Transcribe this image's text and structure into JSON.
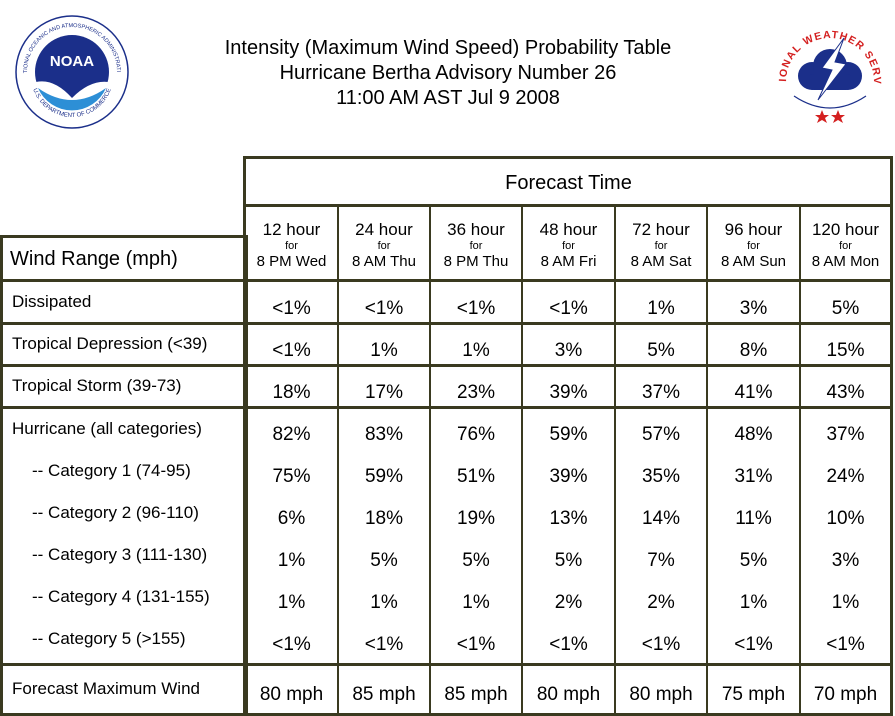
{
  "title": {
    "line1": "Intensity (Maximum Wind Speed) Probability Table",
    "line2": "Hurricane Bertha Advisory Number 26",
    "line3": "11:00 AM AST Jul 9 2008"
  },
  "logos": {
    "noaa": {
      "text": "NOAA",
      "ring_top": "NATIONAL OCEANIC AND ATMOSPHERIC ADMINISTRATION",
      "ring_bottom": "U.S. DEPARTMENT OF COMMERCE",
      "color": "#1b2f8a"
    },
    "nws": {
      "ring_text": "NATIONAL WEATHER SERVICE",
      "color": "#d42020"
    }
  },
  "table": {
    "forecast_title": "Forecast Time",
    "wind_range_label": "Wind Range (mph)",
    "border_color": "#3a3a20",
    "columns": [
      {
        "hour": "12 hour",
        "for": "for",
        "time": "8 PM Wed"
      },
      {
        "hour": "24 hour",
        "for": "for",
        "time": "8 AM Thu"
      },
      {
        "hour": "36 hour",
        "for": "for",
        "time": "8 PM Thu"
      },
      {
        "hour": "48 hour",
        "for": "for",
        "time": "8 AM Fri"
      },
      {
        "hour": "72 hour",
        "for": "for",
        "time": "8 AM Sat"
      },
      {
        "hour": "96 hour",
        "for": "for",
        "time": "8 AM Sun"
      },
      {
        "hour": "120 hour",
        "for": "for",
        "time": "8 AM Mon"
      }
    ],
    "rows": [
      {
        "label": "Dissipated",
        "values": [
          "<1%",
          "<1%",
          "<1%",
          "<1%",
          "1%",
          "3%",
          "5%"
        ]
      },
      {
        "label": "Tropical Depression (<39)",
        "values": [
          "<1%",
          "1%",
          "1%",
          "3%",
          "5%",
          "8%",
          "15%"
        ]
      },
      {
        "label": "Tropical Storm (39-73)",
        "values": [
          "18%",
          "17%",
          "23%",
          "39%",
          "37%",
          "41%",
          "43%"
        ]
      },
      {
        "label": "Hurricane (all categories)",
        "values": [
          "82%",
          "83%",
          "76%",
          "59%",
          "57%",
          "48%",
          "37%"
        ]
      },
      {
        "label": "-- Category 1 (74-95)",
        "values": [
          "75%",
          "59%",
          "51%",
          "39%",
          "35%",
          "31%",
          "24%"
        ]
      },
      {
        "label": "-- Category 2 (96-110)",
        "values": [
          "6%",
          "18%",
          "19%",
          "13%",
          "14%",
          "11%",
          "10%"
        ]
      },
      {
        "label": "-- Category 3 (111-130)",
        "values": [
          "1%",
          "5%",
          "5%",
          "5%",
          "7%",
          "5%",
          "3%"
        ]
      },
      {
        "label": "-- Category 4 (131-155)",
        "values": [
          "1%",
          "1%",
          "1%",
          "2%",
          "2%",
          "1%",
          "1%"
        ]
      },
      {
        "label": "-- Category 5 (>155)",
        "values": [
          "<1%",
          "<1%",
          "<1%",
          "<1%",
          "<1%",
          "<1%",
          "<1%"
        ]
      },
      {
        "label": "Forecast Maximum Wind",
        "values": [
          "80 mph",
          "85 mph",
          "85 mph",
          "80 mph",
          "80 mph",
          "75 mph",
          "70 mph"
        ]
      }
    ]
  }
}
